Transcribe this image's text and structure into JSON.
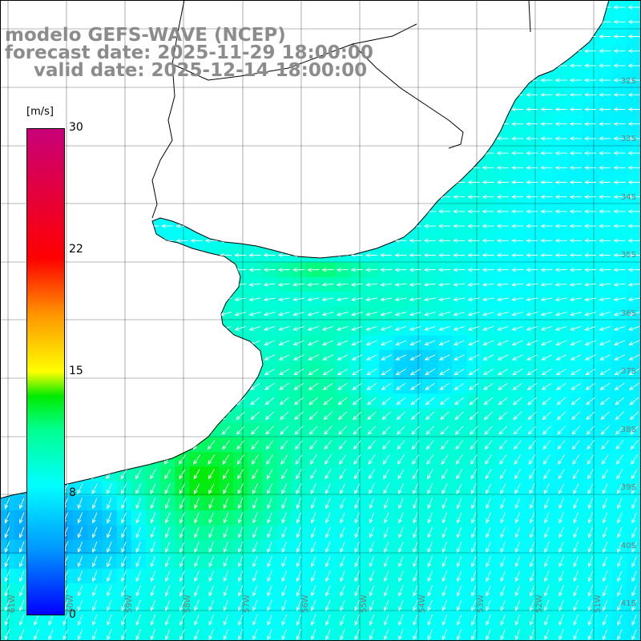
{
  "title": {
    "line1": "modelo GEFS-WAVE (NCEP)",
    "line2": "forecast date: 2025-11-29 18:00:00",
    "line3": "valid date: 2025-12-14 18:00:00"
  },
  "colorbar": {
    "unit": "[m/s]",
    "ticks": [
      "30",
      "22",
      "15",
      "8",
      "0"
    ],
    "tick_values": [
      30,
      22,
      15,
      8,
      0
    ],
    "min": 0,
    "max": 30
  },
  "lat_labels": [
    "32S",
    "33S",
    "34S",
    "35S",
    "36S",
    "37S",
    "38S",
    "39S",
    "40S",
    "41S"
  ],
  "lon_labels": [
    "61W",
    "60W",
    "59W",
    "58W",
    "57W",
    "56W",
    "55W",
    "54W",
    "53W",
    "52W",
    "51W"
  ],
  "colors": {
    "land": "#ffffff",
    "grid": "#000000",
    "coast": "#000000",
    "arrow": "#ffffff",
    "title": "#8c8c8c"
  },
  "wind_field": {
    "description_units": "m/s",
    "prevailing_direction_north": "E to W (easterly) winds",
    "prevailing_direction_south": "NE to SW",
    "speed_range": [
      2,
      14
    ]
  }
}
